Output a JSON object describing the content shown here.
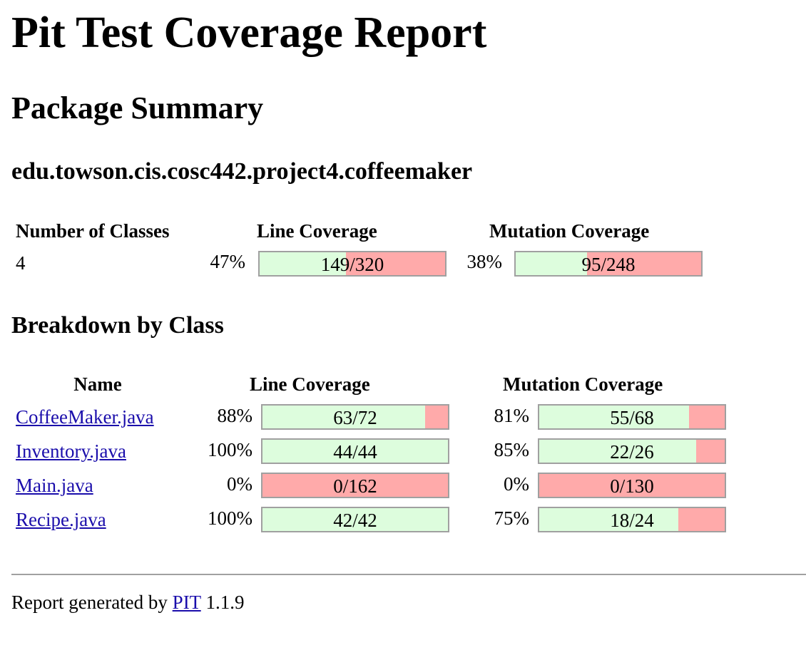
{
  "title": "Pit Test Coverage Report",
  "package_summary_heading": "Package Summary",
  "package_name": "edu.towson.cis.cosc442.project4.coffeemaker",
  "summary": {
    "headers": {
      "classes": "Number of Classes",
      "line": "Line Coverage",
      "mutation": "Mutation Coverage"
    },
    "num_classes": "4",
    "line_pct": "47%",
    "line_ratio": "149/320",
    "line_fraction": 0.466,
    "mutation_pct": "38%",
    "mutation_ratio": "95/248",
    "mutation_fraction": 0.383
  },
  "breakdown_heading": "Breakdown by Class",
  "breakdown": {
    "headers": {
      "name": "Name",
      "line": "Line Coverage",
      "mutation": "Mutation Coverage"
    },
    "rows": [
      {
        "name": "CoffeeMaker.java",
        "line_pct": "88%",
        "line_ratio": "63/72",
        "line_fraction": 0.875,
        "mutation_pct": "81%",
        "mutation_ratio": "55/68",
        "mutation_fraction": 0.809
      },
      {
        "name": "Inventory.java",
        "line_pct": "100%",
        "line_ratio": "44/44",
        "line_fraction": 1.0,
        "mutation_pct": "85%",
        "mutation_ratio": "22/26",
        "mutation_fraction": 0.846
      },
      {
        "name": "Main.java",
        "line_pct": "0%",
        "line_ratio": "0/162",
        "line_fraction": 0.0,
        "mutation_pct": "0%",
        "mutation_ratio": "0/130",
        "mutation_fraction": 0.0
      },
      {
        "name": "Recipe.java",
        "line_pct": "100%",
        "line_ratio": "42/42",
        "line_fraction": 1.0,
        "mutation_pct": "75%",
        "mutation_ratio": "18/24",
        "mutation_fraction": 0.75
      }
    ]
  },
  "footer": {
    "prefix": "Report generated by",
    "link_text": "PIT",
    "version": "1.1.9"
  },
  "colors": {
    "covered": "#ddfddd",
    "uncovered": "#ffaaaa",
    "link": "#1a0dab"
  }
}
